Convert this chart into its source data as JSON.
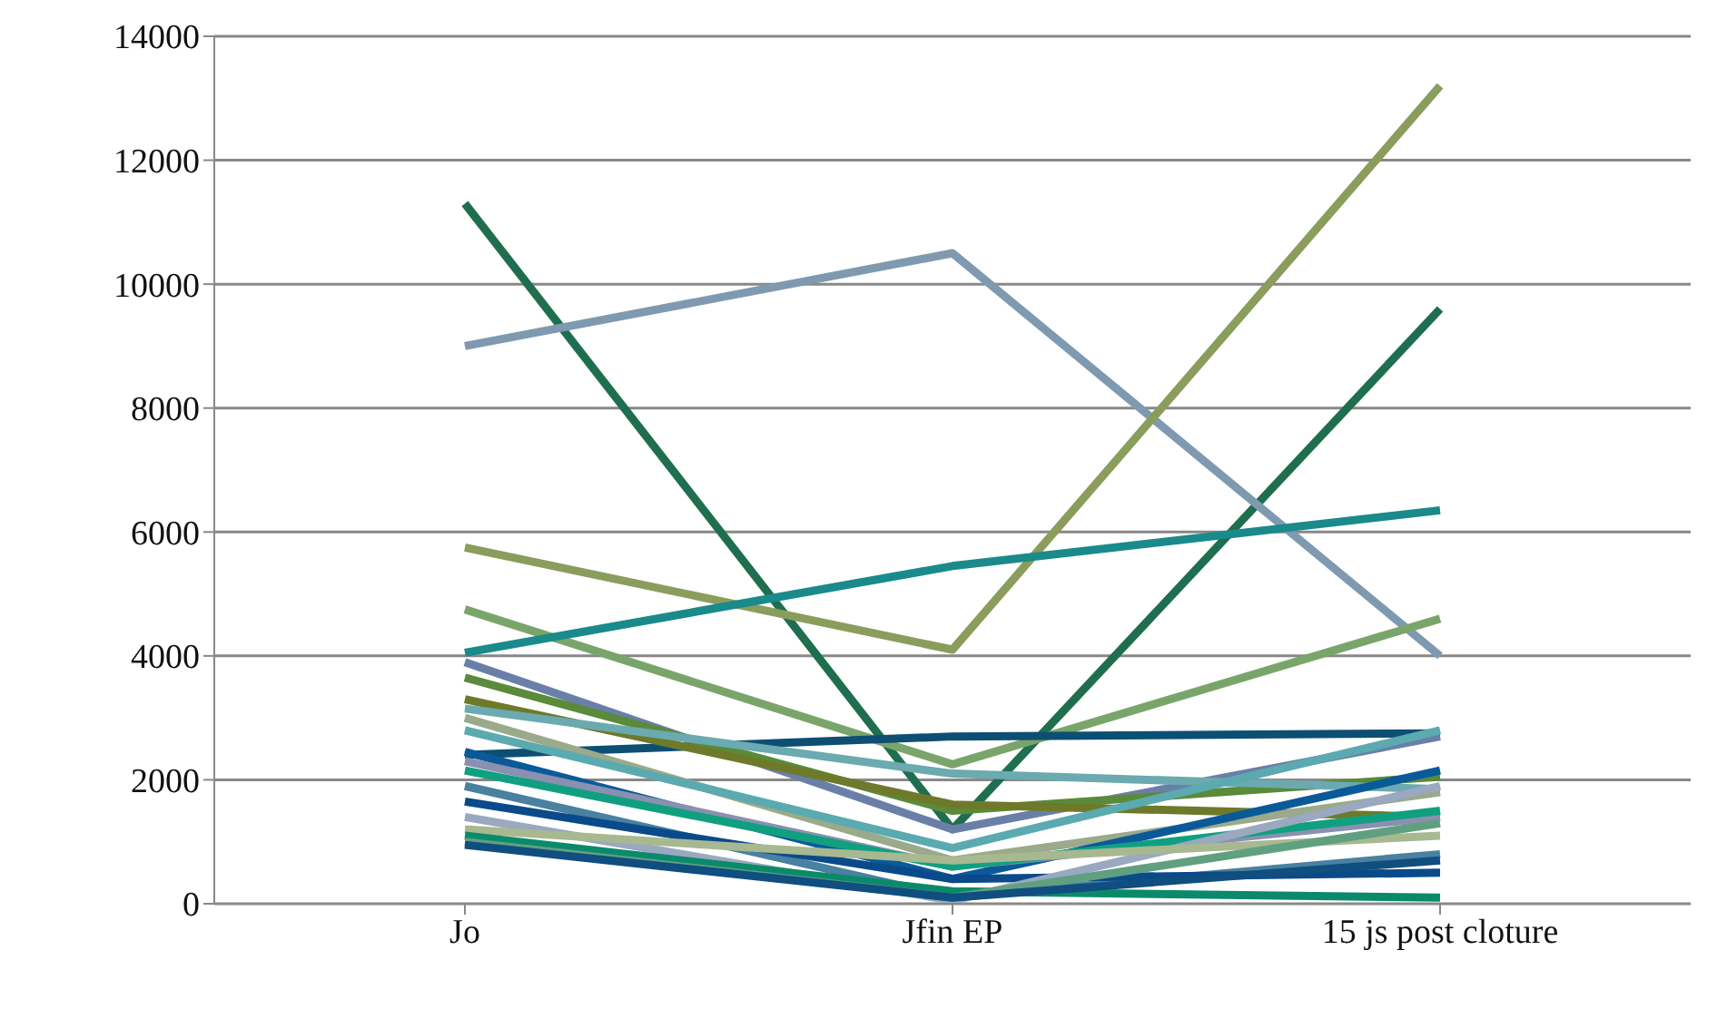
{
  "chart_data": {
    "type": "line",
    "categories": [
      "Jo",
      "Jfin EP",
      "15 js post cloture"
    ],
    "ylim": [
      0,
      14000
    ],
    "yticks": [
      0,
      2000,
      4000,
      6000,
      8000,
      10000,
      12000,
      14000
    ],
    "grid": "y",
    "marker": "none",
    "line_style": "solid",
    "series": [
      {
        "color": "#1f6e50",
        "values": [
          11300,
          1200,
          9600
        ]
      },
      {
        "color": "#7f9ab0",
        "values": [
          9000,
          10500,
          4000
        ]
      },
      {
        "color": "#8a9d5c",
        "values": [
          5750,
          4100,
          13200
        ]
      },
      {
        "color": "#7aa56a",
        "values": [
          4750,
          2250,
          4600
        ]
      },
      {
        "color": "#1a8a8a",
        "values": [
          4050,
          5450,
          6350
        ]
      },
      {
        "color": "#0d4f73",
        "values": [
          2400,
          2700,
          2750
        ]
      },
      {
        "color": "#6a7fa8",
        "values": [
          3900,
          1200,
          2700
        ]
      },
      {
        "color": "#5a8a3a",
        "values": [
          3650,
          1500,
          2050
        ]
      },
      {
        "color": "#6e7a2a",
        "values": [
          3300,
          1600,
          1400
        ]
      },
      {
        "color": "#6aaab0",
        "values": [
          3150,
          2100,
          1850
        ]
      },
      {
        "color": "#9aaa8a",
        "values": [
          3000,
          700,
          1800
        ]
      },
      {
        "color": "#5aaab0",
        "values": [
          2800,
          900,
          2800
        ]
      },
      {
        "color": "#0a5a9a",
        "values": [
          2450,
          400,
          2150
        ]
      },
      {
        "color": "#8a90b0",
        "values": [
          2300,
          600,
          1400
        ]
      },
      {
        "color": "#10a080",
        "values": [
          2150,
          600,
          1500
        ]
      },
      {
        "color": "#4a80a0",
        "values": [
          1900,
          100,
          800
        ]
      },
      {
        "color": "#0a4a8a",
        "values": [
          1650,
          400,
          500
        ]
      },
      {
        "color": "#9aa8c0",
        "values": [
          1400,
          50,
          1900
        ]
      },
      {
        "color": "#a8b890",
        "values": [
          1200,
          700,
          1100
        ]
      },
      {
        "color": "#0a8a6a",
        "values": [
          1100,
          200,
          100
        ]
      },
      {
        "color": "#60a080",
        "values": [
          1000,
          100,
          1300
        ]
      },
      {
        "color": "#104e80",
        "values": [
          950,
          100,
          700
        ]
      }
    ]
  }
}
